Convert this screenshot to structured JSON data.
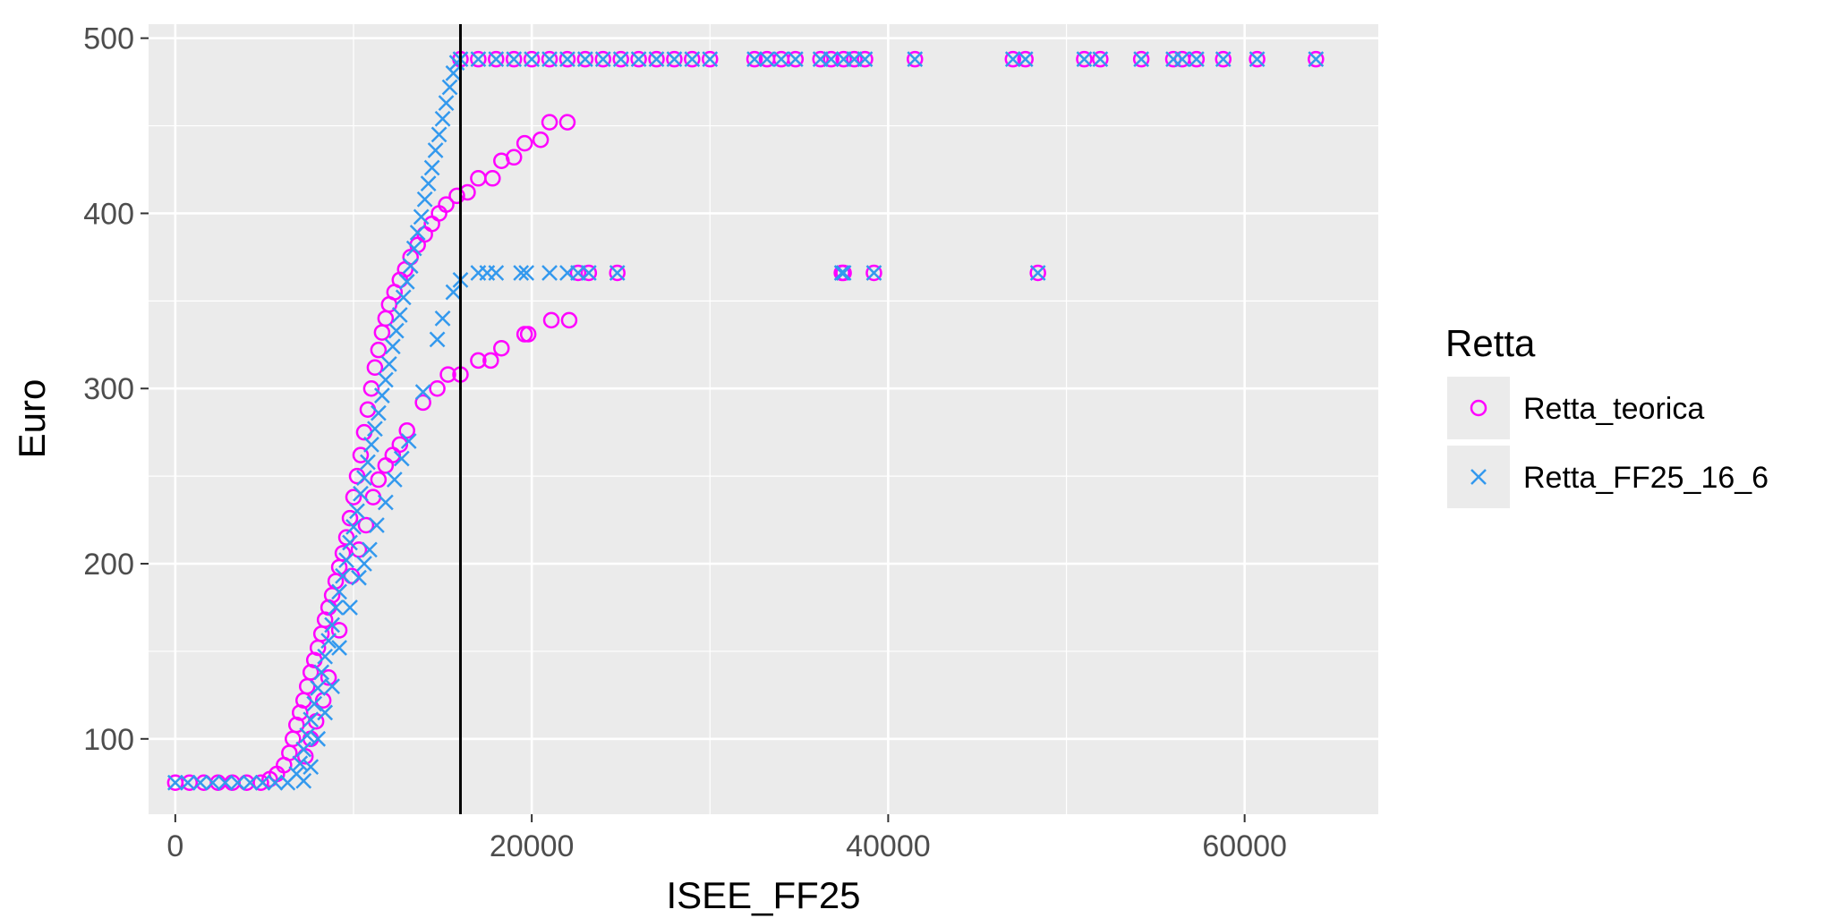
{
  "chart_data": {
    "type": "scatter",
    "title": "",
    "xlabel": "ISEE_FF25",
    "ylabel": "Euro",
    "xlim": [
      -1500,
      67500
    ],
    "ylim": [
      57,
      508
    ],
    "x_ticks": [
      0,
      20000,
      40000,
      60000
    ],
    "x_tick_labels": [
      "0",
      "20000",
      "40000",
      "60000"
    ],
    "y_ticks": [
      100,
      200,
      300,
      400,
      500
    ],
    "y_tick_labels": [
      "100",
      "200",
      "300",
      "400",
      "500"
    ],
    "grid": true,
    "legend": {
      "title": "Retta",
      "placement": "right"
    },
    "vline": {
      "x": 16000
    },
    "colors": {
      "panel": "#EBEBEB",
      "grid": "#FFFFFF",
      "vline": "#000000"
    },
    "series": [
      {
        "name": "Retta_teorica",
        "marker": "circle",
        "color": "#FF00FF",
        "points": [
          [
            0,
            75
          ],
          [
            800,
            75
          ],
          [
            1600,
            75
          ],
          [
            2400,
            75
          ],
          [
            3200,
            75
          ],
          [
            4000,
            75
          ],
          [
            4800,
            75
          ],
          [
            5300,
            77
          ],
          [
            5700,
            80
          ],
          [
            6100,
            85
          ],
          [
            6400,
            92
          ],
          [
            6600,
            100
          ],
          [
            6800,
            108
          ],
          [
            7000,
            115
          ],
          [
            7200,
            122
          ],
          [
            7400,
            130
          ],
          [
            7600,
            138
          ],
          [
            7800,
            145
          ],
          [
            8000,
            152
          ],
          [
            8200,
            160
          ],
          [
            8400,
            168
          ],
          [
            8600,
            175
          ],
          [
            8800,
            182
          ],
          [
            9000,
            190
          ],
          [
            9200,
            198
          ],
          [
            9400,
            206
          ],
          [
            9600,
            215
          ],
          [
            9800,
            226
          ],
          [
            10000,
            238
          ],
          [
            10200,
            250
          ],
          [
            10400,
            262
          ],
          [
            10600,
            275
          ],
          [
            10800,
            288
          ],
          [
            11000,
            300
          ],
          [
            11200,
            312
          ],
          [
            11400,
            322
          ],
          [
            11600,
            332
          ],
          [
            11800,
            340
          ],
          [
            12000,
            348
          ],
          [
            12300,
            355
          ],
          [
            12600,
            362
          ],
          [
            12900,
            368
          ],
          [
            13200,
            375
          ],
          [
            13600,
            382
          ],
          [
            14000,
            388
          ],
          [
            14400,
            394
          ],
          [
            14800,
            400
          ],
          [
            15200,
            405
          ],
          [
            15800,
            410
          ],
          [
            16400,
            412
          ],
          [
            17000,
            420
          ],
          [
            17800,
            420
          ],
          [
            18300,
            430
          ],
          [
            19000,
            432
          ],
          [
            19600,
            440
          ],
          [
            20500,
            442
          ],
          [
            21000,
            452
          ],
          [
            22000,
            452
          ],
          [
            7300,
            90
          ],
          [
            7600,
            100
          ],
          [
            7900,
            110
          ],
          [
            8300,
            122
          ],
          [
            8600,
            135
          ],
          [
            9200,
            162
          ],
          [
            9900,
            193
          ],
          [
            10300,
            208
          ],
          [
            10700,
            222
          ],
          [
            11100,
            238
          ],
          [
            11400,
            248
          ],
          [
            11800,
            256
          ],
          [
            12200,
            262
          ],
          [
            12600,
            268
          ],
          [
            13000,
            276
          ],
          [
            13900,
            292
          ],
          [
            14700,
            300
          ],
          [
            15300,
            308
          ],
          [
            16000,
            308
          ],
          [
            17000,
            316
          ],
          [
            17700,
            316
          ],
          [
            18300,
            323
          ],
          [
            19600,
            331
          ],
          [
            19800,
            331
          ],
          [
            21100,
            339
          ],
          [
            22100,
            339
          ],
          [
            22600,
            366
          ],
          [
            23200,
            366
          ],
          [
            24800,
            366
          ],
          [
            37400,
            366
          ],
          [
            37500,
            366
          ],
          [
            39200,
            366
          ],
          [
            48400,
            366
          ],
          [
            16000,
            488
          ],
          [
            17000,
            488
          ],
          [
            18000,
            488
          ],
          [
            19000,
            488
          ],
          [
            20000,
            488
          ],
          [
            21000,
            488
          ],
          [
            22000,
            488
          ],
          [
            23000,
            488
          ],
          [
            24000,
            488
          ],
          [
            25000,
            488
          ],
          [
            26000,
            488
          ],
          [
            27000,
            488
          ],
          [
            28000,
            488
          ],
          [
            29000,
            488
          ],
          [
            30000,
            488
          ],
          [
            32500,
            488
          ],
          [
            33200,
            488
          ],
          [
            34000,
            488
          ],
          [
            34800,
            488
          ],
          [
            36200,
            488
          ],
          [
            36800,
            488
          ],
          [
            37500,
            488
          ],
          [
            38100,
            488
          ],
          [
            38700,
            488
          ],
          [
            41500,
            488
          ],
          [
            47000,
            488
          ],
          [
            47700,
            488
          ],
          [
            51000,
            488
          ],
          [
            51900,
            488
          ],
          [
            54200,
            488
          ],
          [
            56000,
            488
          ],
          [
            56500,
            488
          ],
          [
            57300,
            488
          ],
          [
            58800,
            488
          ],
          [
            60700,
            488
          ],
          [
            64000,
            488
          ]
        ]
      },
      {
        "name": "Retta_FF25_16_6",
        "marker": "x",
        "color": "#3399EE",
        "points": [
          [
            0,
            75
          ],
          [
            700,
            75
          ],
          [
            1400,
            75
          ],
          [
            2100,
            75
          ],
          [
            2800,
            75
          ],
          [
            3500,
            75
          ],
          [
            4200,
            75
          ],
          [
            4900,
            75
          ],
          [
            5600,
            75
          ],
          [
            6300,
            75
          ],
          [
            6800,
            80
          ],
          [
            7000,
            86
          ],
          [
            7200,
            94
          ],
          [
            7400,
            102
          ],
          [
            7600,
            111
          ],
          [
            7800,
            120
          ],
          [
            8000,
            129
          ],
          [
            8200,
            138
          ],
          [
            8400,
            147
          ],
          [
            8600,
            156
          ],
          [
            8800,
            165
          ],
          [
            9000,
            175
          ],
          [
            9200,
            184
          ],
          [
            9400,
            193
          ],
          [
            9600,
            202
          ],
          [
            9800,
            212
          ],
          [
            10000,
            221
          ],
          [
            10200,
            230
          ],
          [
            10400,
            240
          ],
          [
            10600,
            249
          ],
          [
            10800,
            258
          ],
          [
            11000,
            268
          ],
          [
            11200,
            277
          ],
          [
            11400,
            286
          ],
          [
            11600,
            296
          ],
          [
            11800,
            305
          ],
          [
            12000,
            314
          ],
          [
            12200,
            324
          ],
          [
            12400,
            333
          ],
          [
            12600,
            342
          ],
          [
            12800,
            352
          ],
          [
            13000,
            361
          ],
          [
            13200,
            370
          ],
          [
            13400,
            380
          ],
          [
            13600,
            389
          ],
          [
            13800,
            398
          ],
          [
            14000,
            408
          ],
          [
            14200,
            417
          ],
          [
            14400,
            426
          ],
          [
            14600,
            436
          ],
          [
            14800,
            445
          ],
          [
            15000,
            454
          ],
          [
            15200,
            463
          ],
          [
            15400,
            472
          ],
          [
            15600,
            480
          ],
          [
            15800,
            486
          ],
          [
            7200,
            76
          ],
          [
            7600,
            84
          ],
          [
            8000,
            100
          ],
          [
            8400,
            115
          ],
          [
            8800,
            130
          ],
          [
            9200,
            152
          ],
          [
            9800,
            175
          ],
          [
            10300,
            192
          ],
          [
            10600,
            200
          ],
          [
            10900,
            208
          ],
          [
            11300,
            222
          ],
          [
            11800,
            235
          ],
          [
            12300,
            248
          ],
          [
            12700,
            260
          ],
          [
            13100,
            270
          ],
          [
            13900,
            298
          ],
          [
            14700,
            328
          ],
          [
            15000,
            340
          ],
          [
            15600,
            355
          ],
          [
            16000,
            362
          ],
          [
            17000,
            366
          ],
          [
            17500,
            366
          ],
          [
            18000,
            366
          ],
          [
            19400,
            366
          ],
          [
            19700,
            366
          ],
          [
            21000,
            366
          ],
          [
            22000,
            366
          ],
          [
            22600,
            366
          ],
          [
            23200,
            366
          ],
          [
            24800,
            366
          ],
          [
            37400,
            366
          ],
          [
            37500,
            366
          ],
          [
            39200,
            366
          ],
          [
            48400,
            366
          ],
          [
            16000,
            488
          ],
          [
            17000,
            488
          ],
          [
            18000,
            488
          ],
          [
            19000,
            488
          ],
          [
            20000,
            488
          ],
          [
            21000,
            488
          ],
          [
            22000,
            488
          ],
          [
            23000,
            488
          ],
          [
            24000,
            488
          ],
          [
            25000,
            488
          ],
          [
            26000,
            488
          ],
          [
            27000,
            488
          ],
          [
            28000,
            488
          ],
          [
            29000,
            488
          ],
          [
            30000,
            488
          ],
          [
            32500,
            488
          ],
          [
            33200,
            488
          ],
          [
            34000,
            488
          ],
          [
            34800,
            488
          ],
          [
            36200,
            488
          ],
          [
            36800,
            488
          ],
          [
            37500,
            488
          ],
          [
            38100,
            488
          ],
          [
            38700,
            488
          ],
          [
            41500,
            488
          ],
          [
            47000,
            488
          ],
          [
            47700,
            488
          ],
          [
            51000,
            488
          ],
          [
            51900,
            488
          ],
          [
            54200,
            488
          ],
          [
            56000,
            488
          ],
          [
            56500,
            488
          ],
          [
            57300,
            488
          ],
          [
            58800,
            488
          ],
          [
            60700,
            488
          ],
          [
            64000,
            488
          ]
        ]
      }
    ]
  }
}
